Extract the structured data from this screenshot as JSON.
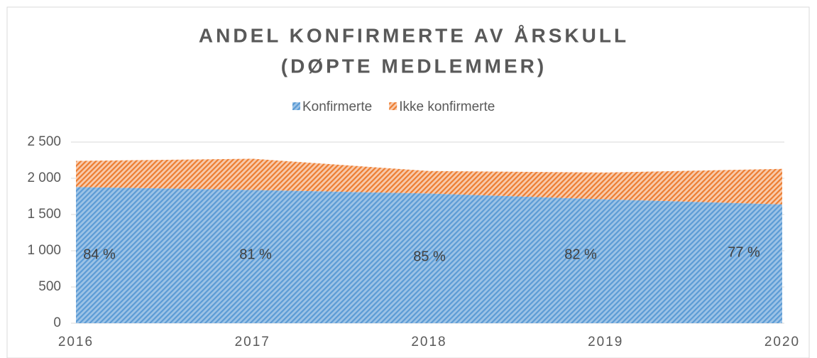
{
  "chart_data": {
    "type": "stacked_area",
    "title": [
      "ANDEL KONFIRMERTE AV ÅRSKULL",
      "(DØPTE MEDLEMMER)"
    ],
    "x": [
      2016,
      2017,
      2018,
      2019,
      2020
    ],
    "xlim": [
      2016,
      2020
    ],
    "xticks": [
      2016,
      2017,
      2018,
      2019,
      2020
    ],
    "series": [
      {
        "name": "Konfirmerte",
        "color": "#5b9bd5",
        "values": [
          1880,
          1840,
          1790,
          1710,
          1640
        ]
      },
      {
        "name": "Ikke konfirmerte",
        "color": "#ed7d31",
        "values": [
          360,
          430,
          310,
          370,
          490
        ]
      }
    ],
    "annotations": [
      "84 %",
      "81 %",
      "85 %",
      "82 %",
      "77 %"
    ],
    "ylim": [
      0,
      2500
    ],
    "yticks": [
      0,
      500,
      {
        "value": 1000,
        "label": "1 000"
      },
      {
        "value": 1500,
        "label": "1 500"
      },
      {
        "value": 2000,
        "label": "2 000"
      },
      {
        "value": 2500,
        "label": "2 500"
      }
    ],
    "grid": true,
    "legend": "top"
  }
}
